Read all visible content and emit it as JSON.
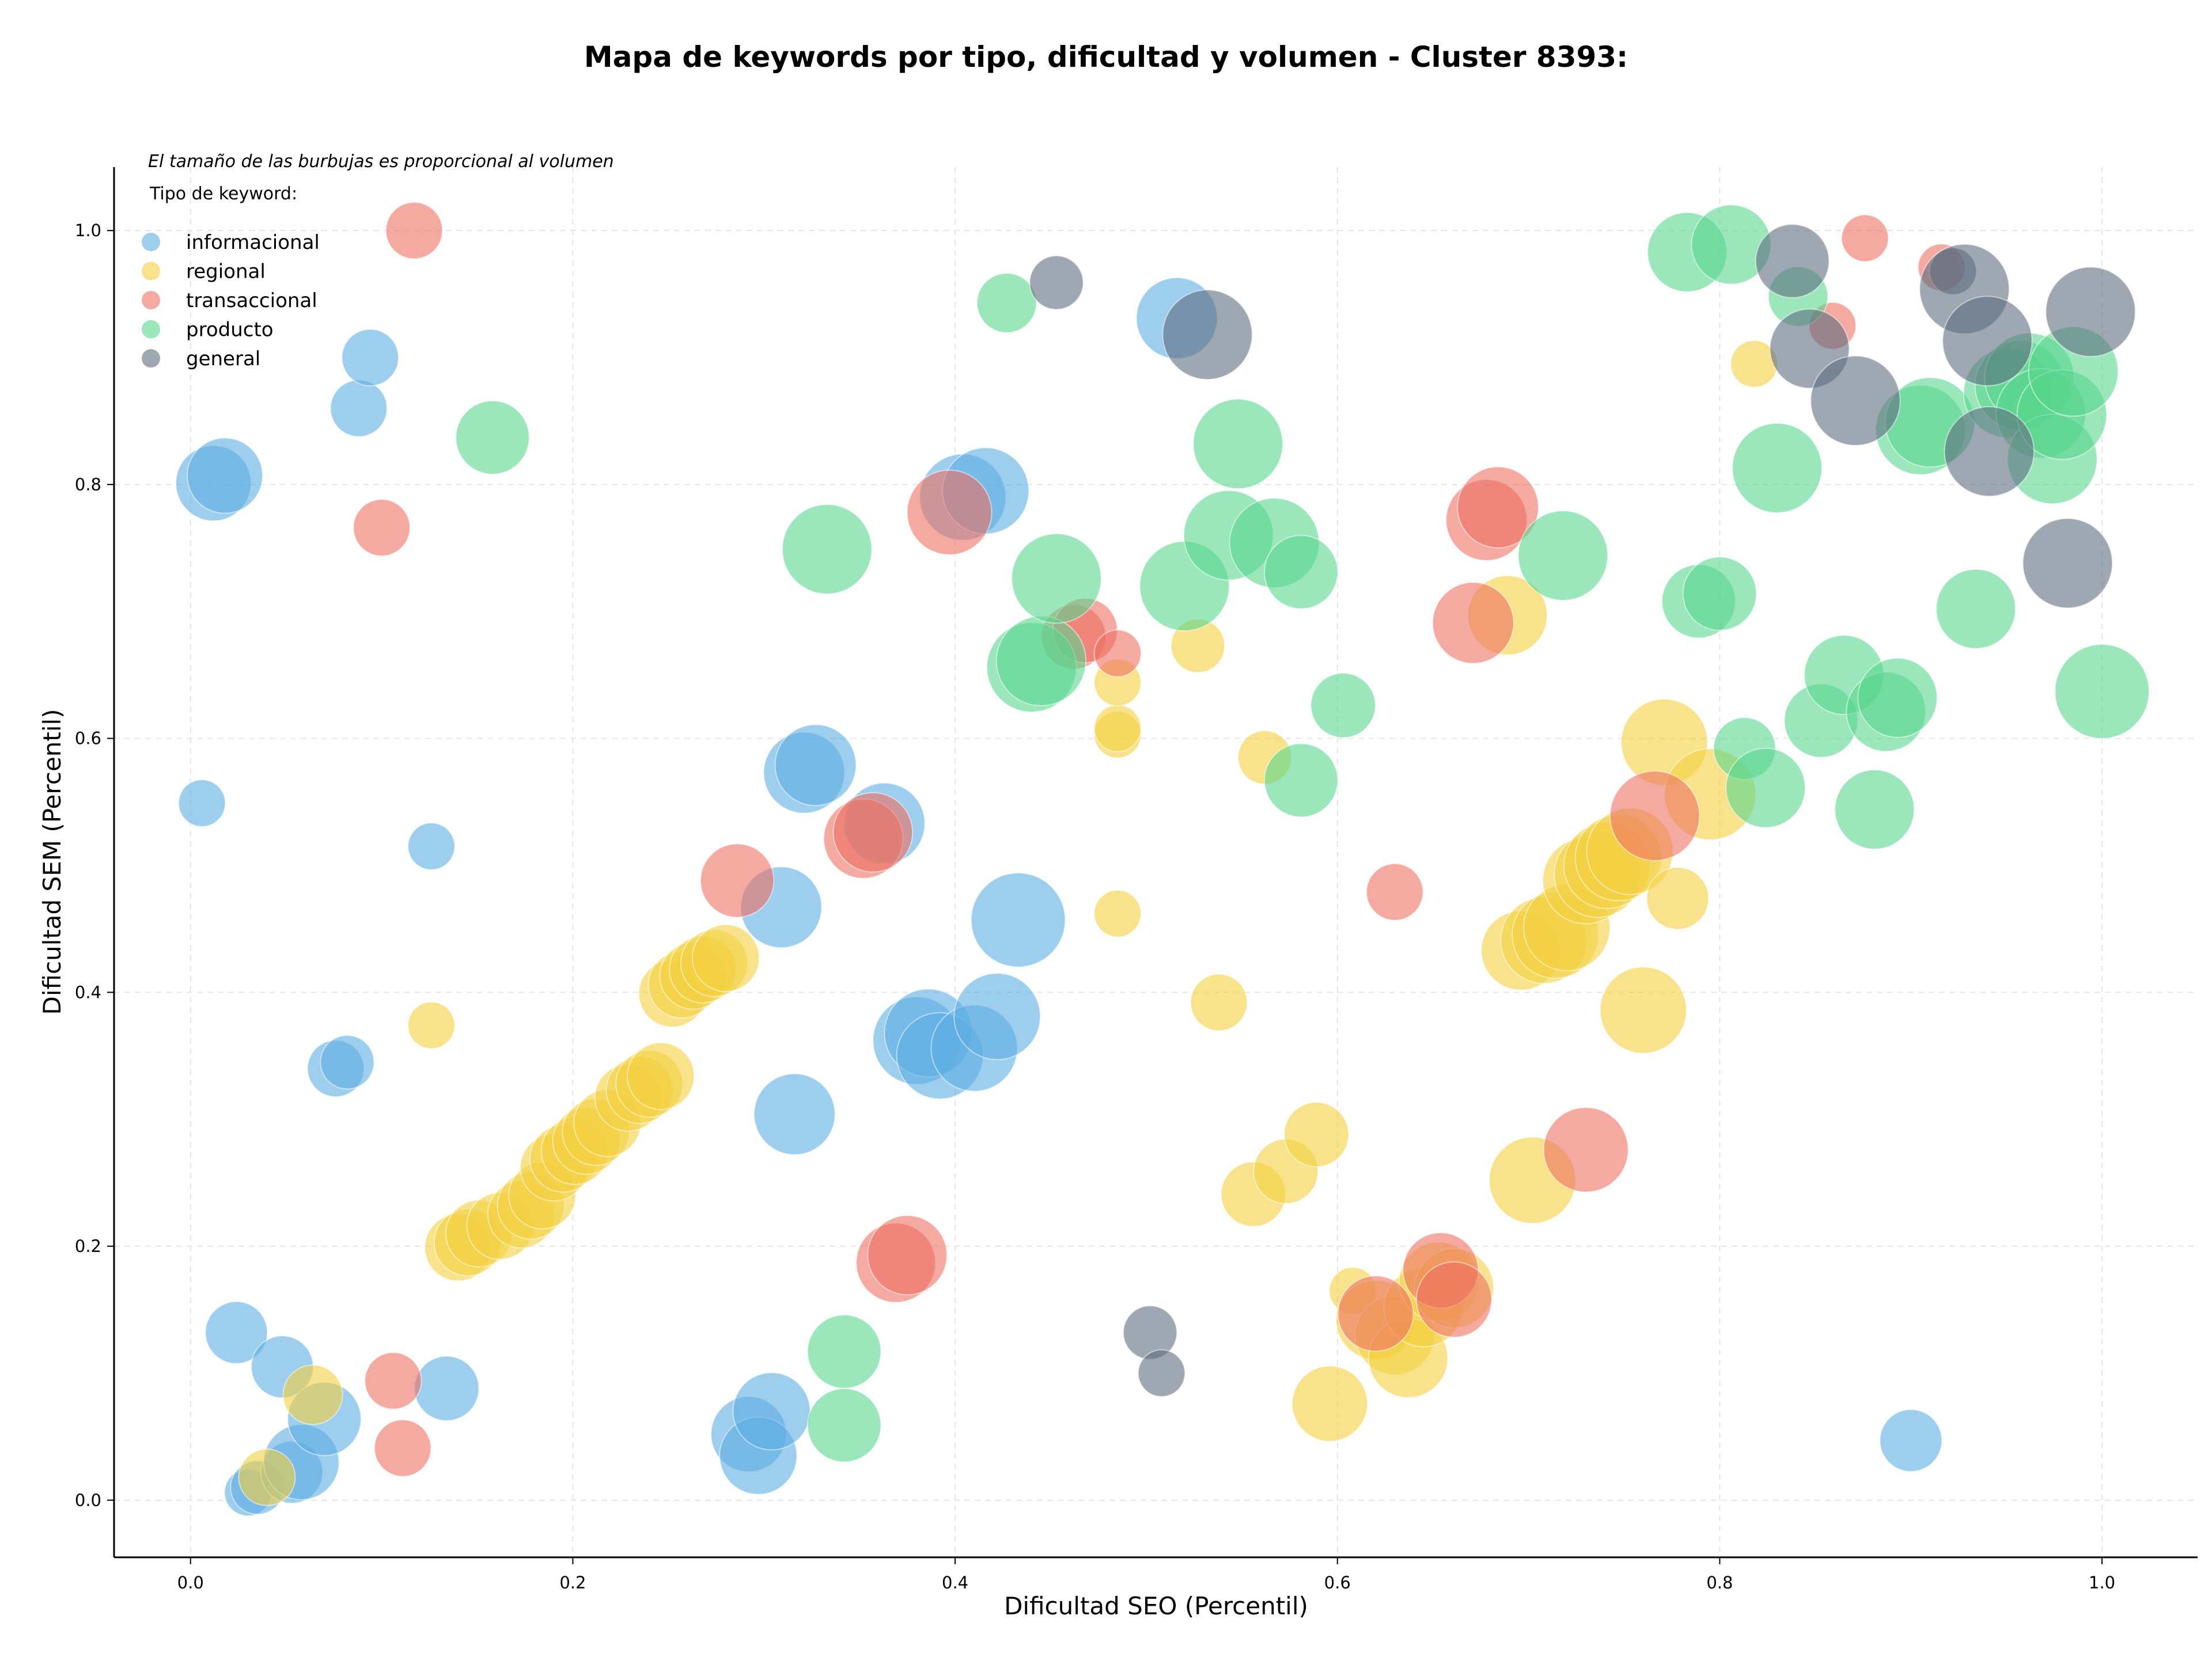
{
  "chart_data": {
    "type": "scatter",
    "title": "Mapa de keywords por tipo, dificultad y volumen - Cluster 8393:",
    "xlabel": "Dificultad SEO (Percentil)",
    "ylabel": "Dificultad SEM (Percentil)",
    "xlim": [
      -0.04,
      1.05
    ],
    "ylim": [
      -0.045,
      1.05
    ],
    "xticks": [
      "0.0",
      "0.2",
      "0.4",
      "0.6",
      "0.8",
      "1.0"
    ],
    "yticks": [
      "0.0",
      "0.2",
      "0.4",
      "0.6",
      "0.8",
      "1.0"
    ],
    "grid": true,
    "note": "El tamaño de las burbujas es proporcional al volumen",
    "legend_title": "Tipo de keyword:",
    "legend_position": "top-left",
    "series": [
      {
        "name": "informacional",
        "color": "#5dade2",
        "points": [
          [
            0.006,
            0.549,
            0.4
          ],
          [
            0.012,
            0.801,
            1.5
          ],
          [
            0.018,
            0.807,
            1.5
          ],
          [
            0.024,
            0.132,
            0.9
          ],
          [
            0.03,
            0.006,
            0.4
          ],
          [
            0.035,
            0.01,
            0.6
          ],
          [
            0.048,
            0.105,
            0.9
          ],
          [
            0.053,
            0.022,
            0.9
          ],
          [
            0.058,
            0.03,
            1.5
          ],
          [
            0.07,
            0.064,
            1.4
          ],
          [
            0.076,
            0.34,
            0.7
          ],
          [
            0.082,
            0.345,
            0.6
          ],
          [
            0.088,
            0.86,
            0.7
          ],
          [
            0.094,
            0.9,
            0.7
          ],
          [
            0.126,
            0.515,
            0.4
          ],
          [
            0.134,
            0.088,
            1.0
          ],
          [
            0.292,
            0.052,
            1.5
          ],
          [
            0.297,
            0.035,
            1.6
          ],
          [
            0.304,
            0.07,
            1.6
          ],
          [
            0.309,
            0.467,
            1.8
          ],
          [
            0.316,
            0.304,
            1.8
          ],
          [
            0.321,
            0.573,
            1.8
          ],
          [
            0.327,
            0.579,
            1.8
          ],
          [
            0.363,
            0.533,
            1.8
          ],
          [
            0.38,
            0.362,
            2.2
          ],
          [
            0.386,
            0.368,
            2.2
          ],
          [
            0.392,
            0.35,
            2.1
          ],
          [
            0.41,
            0.356,
            2.1
          ],
          [
            0.404,
            0.79,
            2.1
          ],
          [
            0.416,
            0.795,
            2.1
          ],
          [
            0.422,
            0.381,
            2.1
          ],
          [
            0.433,
            0.457,
            2.6
          ],
          [
            0.516,
            0.931,
            1.8
          ],
          [
            0.9,
            0.047,
            0.9
          ]
        ]
      },
      {
        "name": "regional",
        "color": "#f4d03f",
        "points": [
          [
            0.04,
            0.018,
            0.7
          ],
          [
            0.064,
            0.083,
            0.8
          ],
          [
            0.126,
            0.374,
            0.4
          ],
          [
            0.14,
            0.199,
            1.1
          ],
          [
            0.145,
            0.203,
            1.1
          ],
          [
            0.151,
            0.21,
            1.1
          ],
          [
            0.162,
            0.216,
            1.1
          ],
          [
            0.173,
            0.225,
            1.1
          ],
          [
            0.178,
            0.232,
            1.1
          ],
          [
            0.184,
            0.24,
            1.1
          ],
          [
            0.19,
            0.262,
            1.1
          ],
          [
            0.195,
            0.269,
            1.1
          ],
          [
            0.201,
            0.275,
            1.1
          ],
          [
            0.207,
            0.283,
            1.1
          ],
          [
            0.212,
            0.29,
            1.1
          ],
          [
            0.218,
            0.297,
            1.1
          ],
          [
            0.229,
            0.317,
            1.1
          ],
          [
            0.235,
            0.323,
            1.1
          ],
          [
            0.24,
            0.328,
            1.1
          ],
          [
            0.246,
            0.334,
            1.1
          ],
          [
            0.252,
            0.399,
            1.1
          ],
          [
            0.257,
            0.406,
            1.1
          ],
          [
            0.263,
            0.413,
            1.1
          ],
          [
            0.268,
            0.418,
            1.1
          ],
          [
            0.274,
            0.423,
            1.1
          ],
          [
            0.28,
            0.427,
            1.1
          ],
          [
            0.485,
            0.462,
            0.4
          ],
          [
            0.485,
            0.603,
            0.4
          ],
          [
            0.485,
            0.608,
            0.4
          ],
          [
            0.485,
            0.644,
            0.4
          ],
          [
            0.527,
            0.673,
            0.6
          ],
          [
            0.538,
            0.392,
            0.7
          ],
          [
            0.556,
            0.241,
            1.0
          ],
          [
            0.562,
            0.585,
            0.6
          ],
          [
            0.573,
            0.259,
            1.0
          ],
          [
            0.589,
            0.288,
            1.0
          ],
          [
            0.596,
            0.076,
            1.5
          ],
          [
            0.608,
            0.165,
            0.4
          ],
          [
            0.62,
            0.142,
            1.7
          ],
          [
            0.63,
            0.13,
            1.7
          ],
          [
            0.637,
            0.112,
            1.7
          ],
          [
            0.645,
            0.152,
            1.7
          ],
          [
            0.653,
            0.172,
            1.7
          ],
          [
            0.661,
            0.167,
            1.7
          ],
          [
            0.689,
            0.697,
            1.7
          ],
          [
            0.696,
            0.433,
            1.7
          ],
          [
            0.702,
            0.252,
            2.1
          ],
          [
            0.708,
            0.441,
            2.1
          ],
          [
            0.714,
            0.445,
            2.1
          ],
          [
            0.72,
            0.451,
            2.1
          ],
          [
            0.73,
            0.488,
            2.1
          ],
          [
            0.736,
            0.493,
            2.1
          ],
          [
            0.741,
            0.5,
            2.1
          ],
          [
            0.747,
            0.506,
            2.1
          ],
          [
            0.753,
            0.511,
            2.1
          ],
          [
            0.76,
            0.386,
            2.1
          ],
          [
            0.771,
            0.597,
            2.1
          ],
          [
            0.778,
            0.474,
            0.9
          ],
          [
            0.795,
            0.556,
            2.4
          ],
          [
            0.818,
            0.895,
            0.4
          ]
        ]
      },
      {
        "name": "transaccional",
        "color": "#ec7063",
        "points": [
          [
            0.1,
            0.766,
            0.7
          ],
          [
            0.106,
            0.094,
            0.7
          ],
          [
            0.111,
            0.041,
            0.7
          ],
          [
            0.117,
            1.0,
            0.7
          ],
          [
            0.286,
            0.488,
            1.4
          ],
          [
            0.352,
            0.521,
            1.7
          ],
          [
            0.357,
            0.526,
            1.7
          ],
          [
            0.369,
            0.187,
            1.7
          ],
          [
            0.375,
            0.193,
            1.7
          ],
          [
            0.397,
            0.778,
            2.0
          ],
          [
            0.462,
            0.68,
            1.0
          ],
          [
            0.468,
            0.685,
            1.0
          ],
          [
            0.485,
            0.667,
            0.4
          ],
          [
            0.63,
            0.479,
            0.7
          ],
          [
            0.62,
            0.147,
            1.5
          ],
          [
            0.654,
            0.181,
            1.5
          ],
          [
            0.661,
            0.158,
            1.5
          ],
          [
            0.671,
            0.691,
            1.8
          ],
          [
            0.678,
            0.772,
            1.8
          ],
          [
            0.684,
            0.782,
            1.8
          ],
          [
            0.73,
            0.276,
            2.0
          ],
          [
            0.766,
            0.539,
            2.3
          ],
          [
            0.876,
            0.994,
            0.4
          ],
          [
            0.859,
            0.925,
            0.4
          ],
          [
            0.916,
            0.971,
            0.4
          ]
        ]
      },
      {
        "name": "producto",
        "color": "#58d68d",
        "points": [
          [
            0.158,
            0.837,
            1.4
          ],
          [
            0.333,
            0.749,
            2.3
          ],
          [
            0.342,
            0.117,
            1.4
          ],
          [
            0.342,
            0.059,
            1.4
          ],
          [
            0.427,
            0.943,
            0.8
          ],
          [
            0.44,
            0.656,
            2.3
          ],
          [
            0.445,
            0.661,
            2.3
          ],
          [
            0.453,
            0.726,
            2.3
          ],
          [
            0.52,
            0.72,
            2.3
          ],
          [
            0.543,
            0.76,
            2.3
          ],
          [
            0.548,
            0.832,
            2.3
          ],
          [
            0.567,
            0.754,
            2.3
          ],
          [
            0.581,
            0.731,
            1.4
          ],
          [
            0.581,
            0.567,
            1.4
          ],
          [
            0.603,
            0.626,
            1.0
          ],
          [
            0.718,
            0.744,
            2.3
          ],
          [
            0.783,
            0.983,
            1.7
          ],
          [
            0.789,
            0.708,
            1.4
          ],
          [
            0.8,
            0.714,
            1.4
          ],
          [
            0.806,
            0.989,
            1.7
          ],
          [
            0.813,
            0.592,
            0.9
          ],
          [
            0.824,
            0.561,
            1.7
          ],
          [
            0.83,
            0.813,
            2.3
          ],
          [
            0.841,
            0.948,
            0.8
          ],
          [
            0.853,
            0.614,
            1.4
          ],
          [
            0.865,
            0.65,
            1.7
          ],
          [
            0.881,
            0.544,
            1.7
          ],
          [
            0.887,
            0.621,
            1.7
          ],
          [
            0.893,
            0.632,
            1.7
          ],
          [
            0.905,
            0.843,
            2.3
          ],
          [
            0.91,
            0.849,
            2.3
          ],
          [
            0.934,
            0.702,
            1.7
          ],
          [
            0.951,
            0.872,
            2.3
          ],
          [
            0.957,
            0.878,
            2.3
          ],
          [
            0.962,
            0.884,
            2.3
          ],
          [
            0.968,
            0.856,
            2.3
          ],
          [
            0.974,
            0.82,
            2.3
          ],
          [
            0.979,
            0.855,
            2.3
          ],
          [
            0.985,
            0.889,
            2.3
          ],
          [
            1.0,
            0.637,
            2.6
          ]
        ]
      },
      {
        "name": "general",
        "color": "#5d6d7e",
        "points": [
          [
            0.453,
            0.959,
            0.6
          ],
          [
            0.502,
            0.132,
            0.6
          ],
          [
            0.508,
            0.1,
            0.4
          ],
          [
            0.532,
            0.918,
            2.3
          ],
          [
            0.838,
            0.976,
            1.4
          ],
          [
            0.847,
            0.907,
            1.7
          ],
          [
            0.871,
            0.866,
            2.3
          ],
          [
            0.922,
            0.968,
            0.4
          ],
          [
            0.928,
            0.954,
            2.3
          ],
          [
            0.94,
            0.913,
            2.3
          ],
          [
            0.941,
            0.826,
            2.3
          ],
          [
            0.982,
            0.738,
            2.3
          ],
          [
            0.994,
            0.936,
            2.3
          ]
        ]
      }
    ]
  }
}
